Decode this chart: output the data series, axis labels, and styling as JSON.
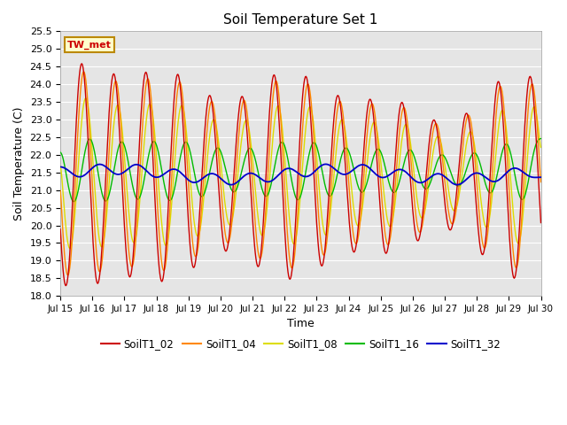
{
  "title": "Soil Temperature Set 1",
  "xlabel": "Time",
  "ylabel": "Soil Temperature (C)",
  "ylim": [
    18.0,
    25.5
  ],
  "yticks": [
    18.0,
    18.5,
    19.0,
    19.5,
    20.0,
    20.5,
    21.0,
    21.5,
    22.0,
    22.5,
    23.0,
    23.5,
    24.0,
    24.5,
    25.0,
    25.5
  ],
  "xtick_labels": [
    "Jul 15",
    "Jul 16",
    "Jul 17",
    "Jul 18",
    "Jul 19",
    "Jul 20",
    "Jul 21",
    "Jul 22",
    "Jul 23",
    "Jul 24",
    "Jul 25",
    "Jul 26",
    "Jul 27",
    "Jul 28",
    "Jul 29",
    "Jul 30"
  ],
  "colors": {
    "SoilT1_02": "#cc0000",
    "SoilT1_04": "#ff8800",
    "SoilT1_08": "#dddd00",
    "SoilT1_16": "#00bb00",
    "SoilT1_32": "#0000cc"
  },
  "annotation_text": "TW_met",
  "annotation_bg": "#ffffcc",
  "annotation_border": "#bb8800",
  "plot_bg": "#e5e5e5",
  "fig_bg": "#ffffff",
  "grid_color": "#ffffff",
  "legend_colors": [
    "#cc0000",
    "#ff8800",
    "#dddd00",
    "#00bb00",
    "#0000cc"
  ],
  "legend_labels": [
    "SoilT1_02",
    "SoilT1_04",
    "SoilT1_08",
    "SoilT1_16",
    "SoilT1_32"
  ]
}
